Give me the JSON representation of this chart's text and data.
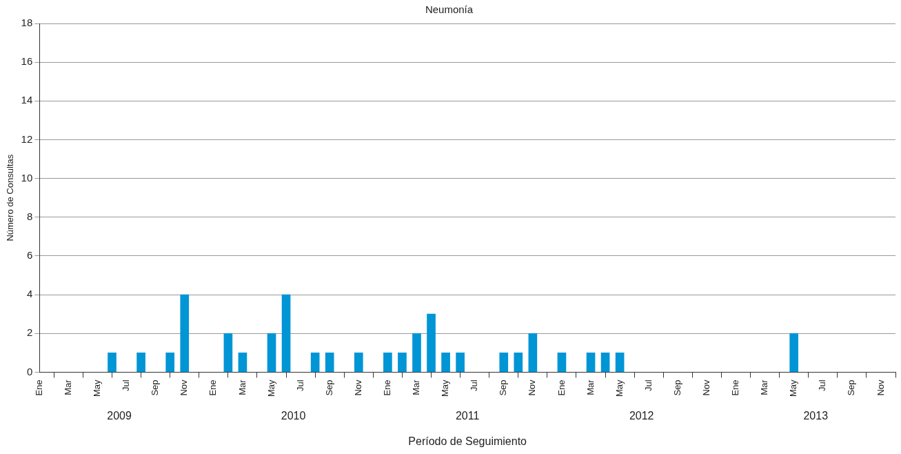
{
  "chart_data": {
    "type": "bar",
    "title": "Neumonía",
    "xlabel": "Período de Seguimiento",
    "ylabel": "Número de Consultas",
    "x": [
      "2009-06",
      "2009-08",
      "2009-10",
      "2009-11",
      "2010-02",
      "2010-03",
      "2010-05",
      "2010-06",
      "2010-08",
      "2010-09",
      "2010-11",
      "2011-01",
      "2011-02",
      "2011-03",
      "2011-04",
      "2011-05",
      "2011-06",
      "2011-09",
      "2011-10",
      "2011-11",
      "2012-01",
      "2012-03",
      "2012-04",
      "2012-05",
      "2013-05"
    ],
    "values": [
      1,
      1,
      1,
      4,
      2,
      1,
      2,
      4,
      1,
      1,
      1,
      1,
      1,
      2,
      3,
      1,
      1,
      1,
      1,
      2,
      1,
      1,
      1,
      1,
      2
    ],
    "color": "#0095d5",
    "xlim": [
      "2009-01",
      "2013-12"
    ],
    "xticks": [
      {
        "value": "2009-01",
        "label": "Ene"
      },
      {
        "value": "2009-03",
        "label": "Mar"
      },
      {
        "value": "2009-05",
        "label": "May"
      },
      {
        "value": "2009-07",
        "label": "Jul"
      },
      {
        "value": "2009-09",
        "label": "Sep"
      },
      {
        "value": "2009-11",
        "label": "Nov"
      },
      {
        "value": "2010-01",
        "label": "Ene"
      },
      {
        "value": "2010-03",
        "label": "Mar"
      },
      {
        "value": "2010-05",
        "label": "May"
      },
      {
        "value": "2010-07",
        "label": "Jul"
      },
      {
        "value": "2010-09",
        "label": "Sep"
      },
      {
        "value": "2010-11",
        "label": "Nov"
      },
      {
        "value": "2011-01",
        "label": "Ene"
      },
      {
        "value": "2011-03",
        "label": "Mar"
      },
      {
        "value": "2011-05",
        "label": "May"
      },
      {
        "value": "2011-07",
        "label": "Jul"
      },
      {
        "value": "2011-09",
        "label": "Sep"
      },
      {
        "value": "2011-11",
        "label": "Nov"
      },
      {
        "value": "2012-01",
        "label": "Ene"
      },
      {
        "value": "2012-03",
        "label": "Mar"
      },
      {
        "value": "2012-05",
        "label": "May"
      },
      {
        "value": "2012-07",
        "label": "Jul"
      },
      {
        "value": "2012-09",
        "label": "Sep"
      },
      {
        "value": "2012-11",
        "label": "Nov"
      },
      {
        "value": "2013-01",
        "label": "Ene"
      },
      {
        "value": "2013-03",
        "label": "Mar"
      },
      {
        "value": "2013-05",
        "label": "May"
      },
      {
        "value": "2013-07",
        "label": "Jul"
      },
      {
        "value": "2013-09",
        "label": "Sep"
      },
      {
        "value": "2013-11",
        "label": "Nov"
      }
    ],
    "ylim": [
      0,
      18
    ],
    "yticks": [
      0,
      2,
      4,
      6,
      8,
      10,
      12,
      14,
      16,
      18
    ],
    "grid": "y",
    "legend": false,
    "annotations": [
      "2009",
      "2010",
      "2011",
      "2012",
      "2013"
    ]
  }
}
